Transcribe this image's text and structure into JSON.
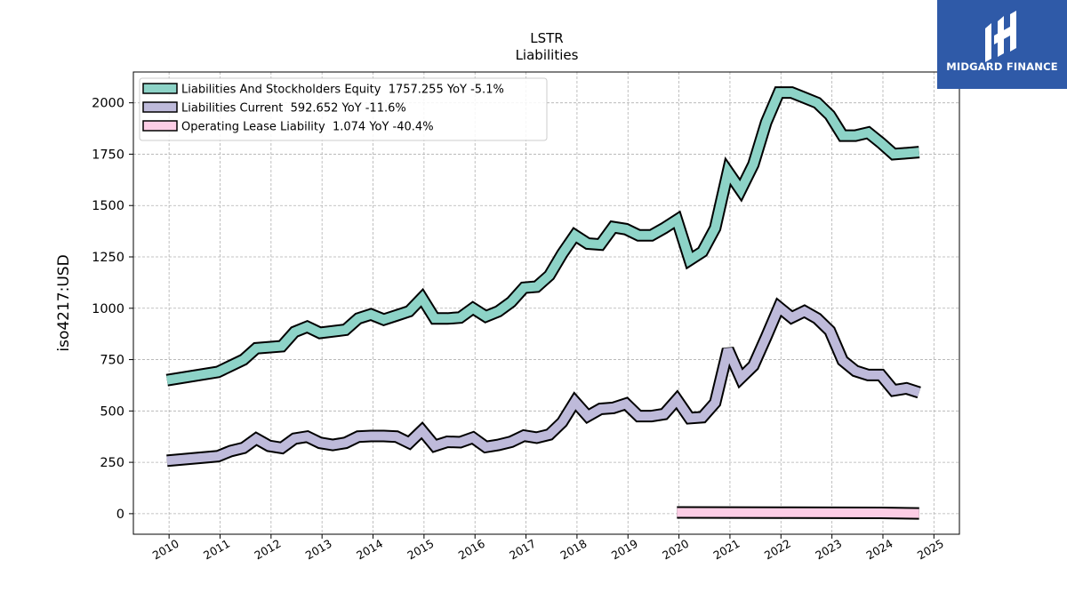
{
  "chart_data": {
    "type": "area",
    "title": "LSTR",
    "subtitle": "Liabilities",
    "xlabel": "",
    "ylabel": "iso4217:USD",
    "x_ticks": [
      "2010",
      "2011",
      "2012",
      "2013",
      "2014",
      "2015",
      "2016",
      "2017",
      "2018",
      "2019",
      "2020",
      "2021",
      "2022",
      "2023",
      "2024",
      "2025"
    ],
    "y_ticks": [
      0,
      250,
      500,
      750,
      1000,
      1250,
      1500,
      1750,
      2000
    ],
    "xlim": [
      2009.3,
      2025.5
    ],
    "ylim": [
      -100,
      2150
    ],
    "grid": true,
    "legend_position": "top-left",
    "series": [
      {
        "name": "Liabilities And Stockholders Equity",
        "legend_label": "Liabilities And Stockholders Equity  1757.255 YoY -5.1%",
        "color": "#8dd3c7",
        "x": [
          2009.96,
          2010.96,
          2011.46,
          2011.71,
          2012.21,
          2012.46,
          2012.71,
          2012.96,
          2013.46,
          2013.71,
          2013.96,
          2014.21,
          2014.46,
          2014.71,
          2014.96,
          2015.21,
          2015.46,
          2015.71,
          2015.96,
          2016.21,
          2016.46,
          2016.71,
          2016.96,
          2017.21,
          2017.46,
          2017.71,
          2017.96,
          2018.21,
          2018.46,
          2018.71,
          2018.96,
          2019.21,
          2019.46,
          2019.71,
          2019.96,
          2020.21,
          2020.46,
          2020.71,
          2020.96,
          2021.21,
          2021.46,
          2021.71,
          2021.96,
          2022.21,
          2022.46,
          2022.71,
          2022.96,
          2023.21,
          2023.46,
          2023.71,
          2023.96,
          2024.21,
          2024.46,
          2024.71
        ],
        "values": [
          650,
          690,
          750,
          805,
          815,
          885,
          910,
          880,
          895,
          950,
          970,
          945,
          965,
          985,
          1050,
          950,
          950,
          955,
          1000,
          960,
          985,
          1030,
          1100,
          1105,
          1160,
          1265,
          1355,
          1315,
          1310,
          1395,
          1385,
          1355,
          1355,
          1390,
          1430,
          1235,
          1275,
          1390,
          1665,
          1575,
          1700,
          1905,
          2050,
          2050,
          2025,
          2000,
          1940,
          1840,
          1840,
          1855,
          1805,
          1750,
          1755,
          1760
        ]
      },
      {
        "name": "Liabilities Current",
        "legend_label": "Liabilities Current  592.652 YoY -11.6%",
        "color": "#bebada",
        "x": [
          2009.96,
          2010.96,
          2011.21,
          2011.46,
          2011.71,
          2011.96,
          2012.21,
          2012.46,
          2012.71,
          2012.96,
          2013.21,
          2013.46,
          2013.71,
          2013.96,
          2014.21,
          2014.46,
          2014.71,
          2014.96,
          2015.21,
          2015.46,
          2015.71,
          2015.96,
          2016.21,
          2016.46,
          2016.71,
          2016.96,
          2017.21,
          2017.46,
          2017.71,
          2017.96,
          2018.21,
          2018.46,
          2018.71,
          2018.96,
          2019.21,
          2019.46,
          2019.71,
          2019.96,
          2020.21,
          2020.46,
          2020.71,
          2020.96,
          2021.21,
          2021.46,
          2021.71,
          2021.96,
          2022.21,
          2022.46,
          2022.71,
          2022.96,
          2023.21,
          2023.46,
          2023.71,
          2023.96,
          2024.21,
          2024.46,
          2024.71
        ],
        "values": [
          258,
          280,
          305,
          320,
          365,
          330,
          320,
          365,
          375,
          345,
          335,
          345,
          375,
          378,
          378,
          375,
          345,
          405,
          330,
          350,
          348,
          370,
          325,
          335,
          350,
          380,
          370,
          385,
          445,
          545,
          475,
          510,
          515,
          535,
          475,
          475,
          485,
          555,
          465,
          470,
          540,
          800,
          660,
          720,
          860,
          1005,
          955,
          985,
          950,
          890,
          745,
          695,
          675,
          675,
          600,
          610,
          590
        ]
      },
      {
        "name": "Operating Lease Liability",
        "legend_label": "Operating Lease Liability  1.074 YoY -40.4%",
        "color": "#fccde5",
        "x": [
          2019.96,
          2021.96,
          2023.96,
          2024.71
        ],
        "values": [
          6,
          5,
          4,
          1.074
        ]
      }
    ]
  },
  "logo": {
    "text": "MIDGARD FINANCE"
  }
}
